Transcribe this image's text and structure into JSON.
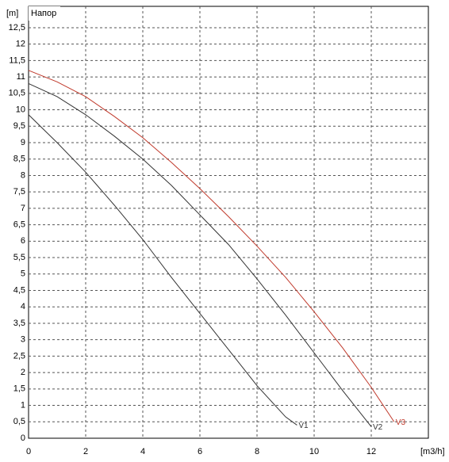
{
  "chart_data": {
    "type": "line",
    "title": "Напор",
    "y_label": "[m]",
    "x_label": "[m3/h]",
    "xlim": [
      0,
      14
    ],
    "ylim": [
      0,
      13.15
    ],
    "xticks": [
      0,
      2,
      4,
      6,
      8,
      10,
      12
    ],
    "yticks": [
      0,
      {
        "value": 0.5,
        "label": "0,5"
      },
      1,
      {
        "value": 1.5,
        "label": "1,5"
      },
      2,
      {
        "value": 2.5,
        "label": "2,5"
      },
      3,
      {
        "value": 3.5,
        "label": "3,5"
      },
      4,
      {
        "value": 4.5,
        "label": "4,5"
      },
      5,
      {
        "value": 5.5,
        "label": "5,5"
      },
      6,
      {
        "value": 6.5,
        "label": "6,5"
      },
      7,
      {
        "value": 7.5,
        "label": "7,5"
      },
      8,
      {
        "value": 8.5,
        "label": "8,5"
      },
      9,
      {
        "value": 9.5,
        "label": "9,5"
      },
      10,
      {
        "value": 10.5,
        "label": "10,5"
      },
      11,
      {
        "value": 11.5,
        "label": "11,5"
      },
      12,
      {
        "value": 12.5,
        "label": "12,5"
      }
    ],
    "grid": true,
    "series": [
      {
        "name": "V1",
        "color": "#333333",
        "x": [
          0,
          1,
          2,
          3,
          4,
          5,
          6,
          7,
          8,
          9,
          9.4
        ],
        "values": [
          9.85,
          9.0,
          8.1,
          7.1,
          6.05,
          4.9,
          3.8,
          2.7,
          1.6,
          0.65,
          0.4
        ]
      },
      {
        "name": "V2",
        "color": "#333333",
        "x": [
          0,
          1,
          2,
          3,
          4,
          5,
          6,
          7,
          8,
          9,
          10,
          11,
          12
        ],
        "values": [
          10.8,
          10.4,
          9.85,
          9.2,
          8.5,
          7.7,
          6.8,
          5.9,
          4.85,
          3.75,
          2.6,
          1.45,
          0.35
        ]
      },
      {
        "name": "V3",
        "color": "#c0392b",
        "x": [
          0,
          1,
          2,
          3,
          4,
          5,
          6,
          7,
          8,
          9,
          10,
          11,
          12,
          12.8
        ],
        "values": [
          11.2,
          10.85,
          10.4,
          9.8,
          9.15,
          8.4,
          7.6,
          6.75,
          5.85,
          4.9,
          3.85,
          2.75,
          1.55,
          0.5
        ]
      }
    ]
  }
}
